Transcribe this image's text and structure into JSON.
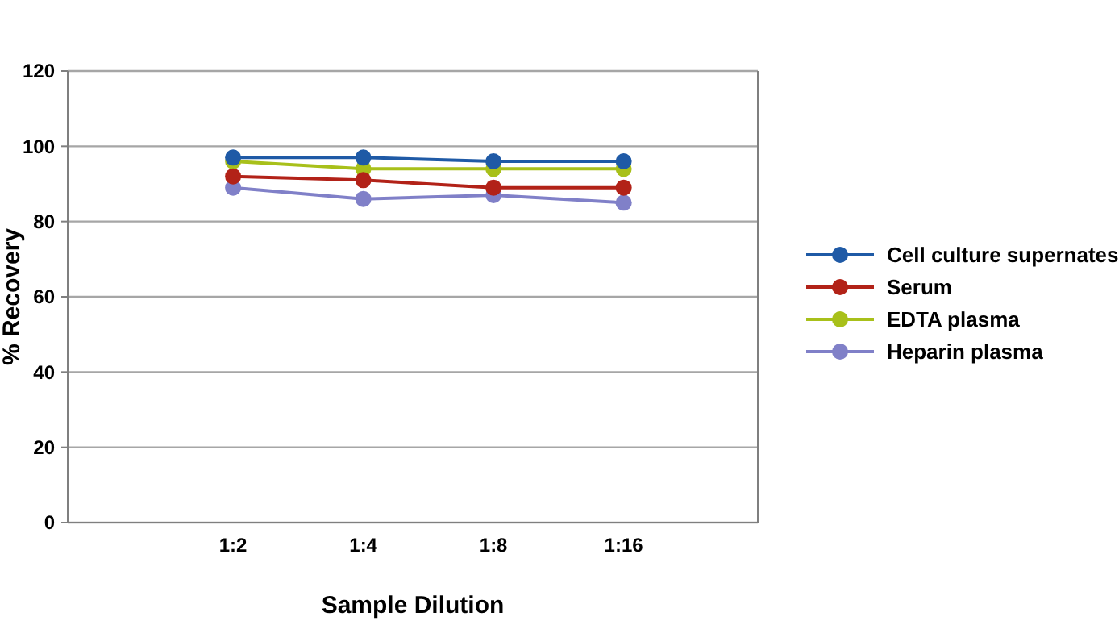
{
  "chart_data": {
    "type": "line",
    "xlabel": "Sample Dilution",
    "ylabel": "% Recovery",
    "categories": [
      "1:2",
      "1:4",
      "1:8",
      "1:16"
    ],
    "series": [
      {
        "name": "Cell culture supernates",
        "color": "#1f5aa6",
        "values": [
          97,
          97,
          96,
          96
        ]
      },
      {
        "name": "Serum",
        "color": "#b22218",
        "values": [
          92,
          91,
          89,
          89
        ]
      },
      {
        "name": "EDTA plasma",
        "color": "#a8c01a",
        "values": [
          96,
          94,
          94,
          94
        ]
      },
      {
        "name": "Heparin plasma",
        "color": "#8080c8",
        "values": [
          89,
          86,
          87,
          85
        ]
      }
    ],
    "ylim": [
      0,
      120
    ],
    "yticks": [
      0,
      20,
      40,
      60,
      80,
      100,
      120
    ],
    "grid": "y",
    "legend": "right",
    "marker": "circle",
    "line_style": "solid"
  }
}
